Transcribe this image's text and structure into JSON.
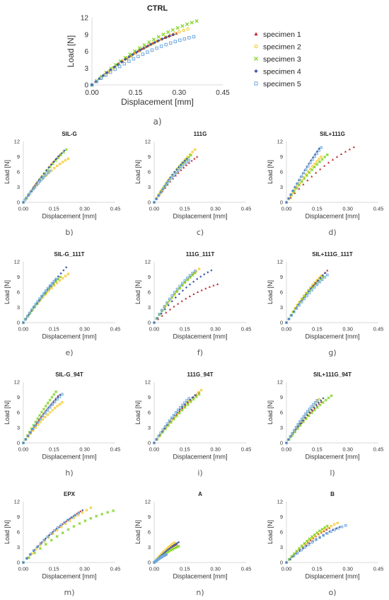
{
  "legend": {
    "entries": [
      "specimen 1",
      "specimen 2",
      "specimen 3",
      "specimen 4",
      "specimen 5"
    ],
    "colors": [
      "#c0282d",
      "#f5c518",
      "#7ed321",
      "#3b5ba5",
      "#6fa8dc"
    ],
    "markers": [
      "triangle",
      "circle",
      "x",
      "diamond",
      "square"
    ]
  },
  "chart_data": [
    {
      "type": "scatter",
      "title": "CTRL",
      "caption": "a)",
      "xlabel": "Displacement  [mm]",
      "ylabel": "Load  [N]",
      "xlim": [
        0,
        0.45
      ],
      "ylim": [
        0,
        12
      ],
      "xticks": [
        "0.00",
        "0.15",
        "0.30",
        "0.45"
      ],
      "yticks": [
        "0",
        "3",
        "6",
        "9",
        "12"
      ],
      "series": [
        {
          "name": "specimen 1",
          "x": [
            0,
            0.29
          ],
          "y": [
            0,
            9.2
          ],
          "k": 0.45
        },
        {
          "name": "specimen 2",
          "x": [
            0,
            0.33
          ],
          "y": [
            0,
            10.0
          ],
          "k": 0.45
        },
        {
          "name": "specimen 3",
          "x": [
            0,
            0.36
          ],
          "y": [
            0,
            11.4
          ],
          "k": 0.5
        },
        {
          "name": "specimen 4",
          "x": [
            0,
            0.28
          ],
          "y": [
            0,
            9.0
          ],
          "k": 0.4
        },
        {
          "name": "specimen 5",
          "x": [
            0,
            0.35
          ],
          "y": [
            0,
            8.6
          ],
          "k": 0.55
        }
      ]
    },
    {
      "type": "scatter",
      "title": "SIL-G",
      "caption": "b)",
      "xlabel": "Displacement  [mm]",
      "ylabel": "Load  [N]",
      "xlim": [
        0,
        0.45
      ],
      "ylim": [
        0,
        12
      ],
      "xticks": [
        "0.00",
        "0.15",
        "0.30",
        "0.45"
      ],
      "yticks": [
        "0",
        "3",
        "6",
        "9",
        "12"
      ],
      "series": [
        {
          "name": "specimen 1",
          "x": [
            0,
            0.18
          ],
          "y": [
            0,
            9.5
          ],
          "k": 0.2
        },
        {
          "name": "specimen 2",
          "x": [
            0,
            0.22
          ],
          "y": [
            0,
            8.6
          ],
          "k": 0.45
        },
        {
          "name": "specimen 3",
          "x": [
            0,
            0.21
          ],
          "y": [
            0,
            10.4
          ],
          "k": 0.2
        },
        {
          "name": "specimen 4",
          "x": [
            0,
            0.2
          ],
          "y": [
            0,
            10.2
          ],
          "k": 0.2
        },
        {
          "name": "specimen 5",
          "x": [
            0,
            0.13
          ],
          "y": [
            0,
            6.2
          ],
          "k": 0.2
        }
      ]
    },
    {
      "type": "scatter",
      "title": "111G",
      "caption": "c)",
      "xlabel": "Displacement  [mm]",
      "ylabel": "Load  [N]",
      "xlim": [
        0,
        0.45
      ],
      "ylim": [
        0,
        12
      ],
      "xticks": [
        "0.00",
        "0.15",
        "0.30",
        "0.45"
      ],
      "yticks": [
        "0",
        "3",
        "6",
        "9",
        "12"
      ],
      "series": [
        {
          "name": "specimen 1",
          "x": [
            0,
            0.21
          ],
          "y": [
            0,
            9.0
          ],
          "k": 0.35
        },
        {
          "name": "specimen 2",
          "x": [
            0,
            0.2
          ],
          "y": [
            0,
            10.4
          ],
          "k": 0.3
        },
        {
          "name": "specimen 3",
          "x": [
            0,
            0.18
          ],
          "y": [
            0,
            9.3
          ],
          "k": 0.3
        },
        {
          "name": "specimen 4",
          "x": [
            0,
            0.16
          ],
          "y": [
            0,
            8.6
          ],
          "k": 0.3
        },
        {
          "name": "specimen 5",
          "x": [
            0,
            0.17
          ],
          "y": [
            0,
            8.3
          ],
          "k": 0.3
        }
      ]
    },
    {
      "type": "scatter",
      "title": "SIL+111G",
      "caption": "d)",
      "xlabel": "Displacement  [mm]",
      "ylabel": "Load  [N]",
      "xlim": [
        0,
        0.45
      ],
      "ylim": [
        0,
        12
      ],
      "xticks": [
        "0.00",
        "0.15",
        "0.30",
        "0.45"
      ],
      "yticks": [
        "0",
        "3",
        "6",
        "9",
        "12"
      ],
      "series": [
        {
          "name": "specimen 1",
          "x": [
            0,
            0.33
          ],
          "y": [
            0,
            10.9
          ],
          "k": 0.4
        },
        {
          "name": "specimen 2",
          "x": [
            0,
            0.17
          ],
          "y": [
            0,
            9.0
          ],
          "k": 0.2
        },
        {
          "name": "specimen 3",
          "x": [
            0,
            0.2
          ],
          "y": [
            0,
            9.4
          ],
          "k": 0.25
        },
        {
          "name": "specimen 4",
          "x": [
            0,
            0.16
          ],
          "y": [
            0,
            10.6
          ],
          "k": 0.15
        },
        {
          "name": "specimen 5",
          "x": [
            0,
            0.17
          ],
          "y": [
            0,
            10.8
          ],
          "k": 0.15
        }
      ]
    },
    {
      "type": "scatter",
      "title": "SIL-G_111T",
      "caption": "e)",
      "xlabel": "Displacement  [mm]",
      "ylabel": "Load  [N]",
      "xlim": [
        0,
        0.45
      ],
      "ylim": [
        0,
        12
      ],
      "xticks": [
        "0.00",
        "0.15",
        "0.30",
        "0.45"
      ],
      "yticks": [
        "0",
        "3",
        "6",
        "9",
        "12"
      ],
      "series": [
        {
          "name": "specimen 1",
          "x": [
            0,
            0.17
          ],
          "y": [
            0,
            8.6
          ],
          "k": 0.2
        },
        {
          "name": "specimen 2",
          "x": [
            0,
            0.22
          ],
          "y": [
            0,
            9.6
          ],
          "k": 0.35
        },
        {
          "name": "specimen 3",
          "x": [
            0,
            0.18
          ],
          "y": [
            0,
            9.0
          ],
          "k": 0.2
        },
        {
          "name": "specimen 4",
          "x": [
            0,
            0.21
          ],
          "y": [
            0,
            10.9
          ],
          "k": 0.15
        },
        {
          "name": "specimen 5",
          "x": [
            0,
            0.16
          ],
          "y": [
            0,
            8.6
          ],
          "k": 0.2
        }
      ]
    },
    {
      "type": "scatter",
      "title": "111G_111T",
      "caption": "f)",
      "xlabel": "Displacement  [mm]",
      "ylabel": "Load  [N]",
      "xlim": [
        0,
        0.45
      ],
      "ylim": [
        0,
        12
      ],
      "xticks": [
        "0.00",
        "0.15",
        "0.30",
        "0.45"
      ],
      "yticks": [
        "0",
        "3",
        "6",
        "9",
        "12"
      ],
      "series": [
        {
          "name": "specimen 1",
          "x": [
            0,
            0.31
          ],
          "y": [
            0,
            7.6
          ],
          "k": 0.5
        },
        {
          "name": "specimen 2",
          "x": [
            0,
            0.22
          ],
          "y": [
            0,
            10.6
          ],
          "k": 0.3
        },
        {
          "name": "specimen 3",
          "x": [
            0,
            0.2
          ],
          "y": [
            0,
            9.8
          ],
          "k": 0.3
        },
        {
          "name": "specimen 4",
          "x": [
            0,
            0.28
          ],
          "y": [
            0,
            10.3
          ],
          "k": 0.45
        },
        {
          "name": "specimen 5",
          "x": [
            0,
            0.2
          ],
          "y": [
            0,
            10.2
          ],
          "k": 0.35
        }
      ]
    },
    {
      "type": "scatter",
      "title": "SIL+111G_111T",
      "caption": "g)",
      "xlabel": "Displacement  [mm]",
      "ylabel": "Load  [N]",
      "xlim": [
        0,
        0.45
      ],
      "ylim": [
        0,
        12
      ],
      "xticks": [
        "0.00",
        "0.15",
        "0.30",
        "0.45"
      ],
      "yticks": [
        "0",
        "3",
        "6",
        "9",
        "12"
      ],
      "series": [
        {
          "name": "specimen 1",
          "x": [
            0,
            0.2
          ],
          "y": [
            0,
            10.3
          ],
          "k": 0.25
        },
        {
          "name": "specimen 2",
          "x": [
            0,
            0.17
          ],
          "y": [
            0,
            9.2
          ],
          "k": 0.3
        },
        {
          "name": "specimen 3",
          "x": [
            0,
            0.18
          ],
          "y": [
            0,
            9.0
          ],
          "k": 0.3
        },
        {
          "name": "specimen 4",
          "x": [
            0,
            0.19
          ],
          "y": [
            0,
            9.8
          ],
          "k": 0.25
        },
        {
          "name": "specimen 5",
          "x": [
            0,
            0.2
          ],
          "y": [
            0,
            9.4
          ],
          "k": 0.25
        }
      ]
    },
    {
      "type": "scatter",
      "title": "SIL-G_94T",
      "caption": "h)",
      "xlabel": "Displacement  [mm]",
      "ylabel": "Load  [N]",
      "xlim": [
        0,
        0.45
      ],
      "ylim": [
        0,
        12
      ],
      "xticks": [
        "0.00",
        "0.15",
        "0.30",
        "0.45"
      ],
      "yticks": [
        "0",
        "3",
        "6",
        "9",
        "12"
      ],
      "series": [
        {
          "name": "specimen 1",
          "x": [
            0,
            0.17
          ],
          "y": [
            0,
            9.3
          ],
          "k": 0.15
        },
        {
          "name": "specimen 2",
          "x": [
            0,
            0.19
          ],
          "y": [
            0,
            8.0
          ],
          "k": 0.3
        },
        {
          "name": "specimen 3",
          "x": [
            0,
            0.16
          ],
          "y": [
            0,
            10.1
          ],
          "k": 0.15
        },
        {
          "name": "specimen 4",
          "x": [
            0,
            0.18
          ],
          "y": [
            0,
            9.5
          ],
          "k": 0.2
        },
        {
          "name": "specimen 5",
          "x": [
            0,
            0.19
          ],
          "y": [
            0,
            9.6
          ],
          "k": 0.2
        }
      ]
    },
    {
      "type": "scatter",
      "title": "111G_94T",
      "caption": "i)",
      "xlabel": "Displacement  [mm]",
      "ylabel": "Load  [N]",
      "xlim": [
        0,
        0.45
      ],
      "ylim": [
        0,
        12
      ],
      "xticks": [
        "0.00",
        "0.15",
        "0.30",
        "0.45"
      ],
      "yticks": [
        "0",
        "3",
        "6",
        "9",
        "12"
      ],
      "series": [
        {
          "name": "specimen 1",
          "x": [
            0,
            0.22
          ],
          "y": [
            0,
            10.0
          ],
          "k": 0.25
        },
        {
          "name": "specimen 2",
          "x": [
            0,
            0.23
          ],
          "y": [
            0,
            10.4
          ],
          "k": 0.25
        },
        {
          "name": "specimen 3",
          "x": [
            0,
            0.22
          ],
          "y": [
            0,
            9.6
          ],
          "k": 0.2
        },
        {
          "name": "specimen 4",
          "x": [
            0,
            0.2
          ],
          "y": [
            0,
            9.4
          ],
          "k": 0.3
        },
        {
          "name": "specimen 5",
          "x": [
            0,
            0.17
          ],
          "y": [
            0,
            8.8
          ],
          "k": 0.25
        }
      ]
    },
    {
      "type": "scatter",
      "title": "SIL+111G_94T",
      "caption": "l)",
      "xlabel": "Displacement  [mm]",
      "ylabel": "Load  [N]",
      "xlim": [
        0,
        0.45
      ],
      "ylim": [
        0,
        12
      ],
      "xticks": [
        "0.00",
        "0.15",
        "0.30",
        "0.45"
      ],
      "yticks": [
        "0",
        "3",
        "6",
        "9",
        "12"
      ],
      "series": [
        {
          "name": "specimen 1",
          "x": [
            0,
            0.17
          ],
          "y": [
            0,
            8.1
          ],
          "k": 0.2
        },
        {
          "name": "specimen 2",
          "x": [
            0,
            0.16
          ],
          "y": [
            0,
            8.6
          ],
          "k": 0.2
        },
        {
          "name": "specimen 3",
          "x": [
            0,
            0.22
          ],
          "y": [
            0,
            9.3
          ],
          "k": 0.3
        },
        {
          "name": "specimen 4",
          "x": [
            0,
            0.18
          ],
          "y": [
            0,
            8.8
          ],
          "k": 0.25
        },
        {
          "name": "specimen 5",
          "x": [
            0,
            0.15
          ],
          "y": [
            0,
            8.4
          ],
          "k": 0.25
        }
      ]
    },
    {
      "type": "scatter",
      "title": "EPX",
      "caption": "m)",
      "xlabel": "Displacement  [mm]",
      "ylabel": "Load  [N]",
      "xlim": [
        0,
        0.45
      ],
      "ylim": [
        0,
        12
      ],
      "xticks": [
        "0.00",
        "0.15",
        "0.30",
        "0.45"
      ],
      "yticks": [
        "0",
        "3",
        "6",
        "9",
        "12"
      ],
      "series": [
        {
          "name": "specimen 1",
          "x": [
            0,
            0.28
          ],
          "y": [
            0,
            10.1
          ],
          "k": 0.3
        },
        {
          "name": "specimen 2",
          "x": [
            0,
            0.33
          ],
          "y": [
            0,
            10.8
          ],
          "k": 0.35
        },
        {
          "name": "specimen 3",
          "x": [
            0,
            0.44
          ],
          "y": [
            0,
            10.2
          ],
          "k": 0.55
        },
        {
          "name": "specimen 4",
          "x": [
            0,
            0.29
          ],
          "y": [
            0,
            10.3
          ],
          "k": 0.35
        },
        {
          "name": "specimen 5",
          "x": [
            0,
            0.27
          ],
          "y": [
            0,
            9.7
          ],
          "k": 0.35
        }
      ]
    },
    {
      "type": "scatter",
      "title": "A",
      "caption": "n)",
      "xlabel": "Displacement  [mm]",
      "ylabel": "Load  [N]",
      "xlim": [
        0,
        0.45
      ],
      "ylim": [
        0,
        12
      ],
      "xticks": [
        "0.00",
        "0.15",
        "0.30",
        "0.45"
      ],
      "yticks": [
        "0",
        "3",
        "6",
        "9",
        "12"
      ],
      "series": [
        {
          "name": "specimen 1",
          "x": [
            0,
            0.11
          ],
          "y": [
            0,
            3.6
          ],
          "k": 0.3
        },
        {
          "name": "specimen 2",
          "x": [
            0,
            0.1
          ],
          "y": [
            0,
            3.9
          ],
          "k": 0.3
        },
        {
          "name": "specimen 3",
          "x": [
            0,
            0.12
          ],
          "y": [
            0,
            3.2
          ],
          "k": 0.35
        },
        {
          "name": "specimen 4",
          "x": [
            0,
            0.12
          ],
          "y": [
            0,
            4.0
          ],
          "k": 0.3
        },
        {
          "name": "specimen 5",
          "x": [
            0,
            0.06
          ],
          "y": [
            0,
            1.6
          ],
          "k": 0.3
        }
      ]
    },
    {
      "type": "scatter",
      "title": "B",
      "caption": "o)",
      "xlabel": "Displacement  [mm]",
      "ylabel": "Load  [N]",
      "xlim": [
        0,
        0.45
      ],
      "ylim": [
        0,
        12
      ],
      "xticks": [
        "0.00",
        "0.15",
        "0.30",
        "0.45"
      ],
      "yticks": [
        "0",
        "3",
        "6",
        "9",
        "12"
      ],
      "series": [
        {
          "name": "specimen 1",
          "x": [
            0,
            0.21
          ],
          "y": [
            0,
            6.8
          ],
          "k": 0.35
        },
        {
          "name": "specimen 2",
          "x": [
            0,
            0.25
          ],
          "y": [
            0,
            7.8
          ],
          "k": 0.4
        },
        {
          "name": "specimen 3",
          "x": [
            0,
            0.2
          ],
          "y": [
            0,
            7.2
          ],
          "k": 0.35
        },
        {
          "name": "specimen 4",
          "x": [
            0,
            0.26
          ],
          "y": [
            0,
            7.0
          ],
          "k": 0.4
        },
        {
          "name": "specimen 5",
          "x": [
            0,
            0.29
          ],
          "y": [
            0,
            7.3
          ],
          "k": 0.45
        }
      ]
    }
  ]
}
